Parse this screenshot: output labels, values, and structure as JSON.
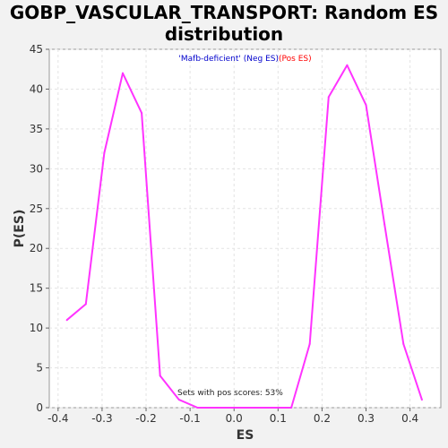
{
  "chart_data": {
    "type": "line",
    "title_line1": "GOBP_VASCULAR_TRANSPORT: Random ES",
    "title_line2": "distribution",
    "xlabel": "ES",
    "ylabel": "P(ES)",
    "xlim": [
      -0.42,
      0.47
    ],
    "ylim": [
      0,
      45
    ],
    "xticks": [
      -0.4,
      -0.3,
      -0.2,
      -0.1,
      0.0,
      0.1,
      0.2,
      0.3,
      0.4
    ],
    "xtick_labels": [
      "-0.4",
      "-0.3",
      "-0.2",
      "-0.1",
      "0.0",
      "0.1",
      "0.2",
      "0.3",
      "0.4"
    ],
    "yticks": [
      0,
      5,
      10,
      15,
      20,
      25,
      30,
      35,
      40,
      45
    ],
    "ytick_labels": [
      "0",
      "5",
      "10",
      "15",
      "20",
      "25",
      "30",
      "35",
      "40",
      "45"
    ],
    "grid": true,
    "legend": {
      "placement": "top-center",
      "neg_label": "'Mafb-deficient' (Neg ES)",
      "pos_label": "(Pos ES)",
      "neg_color": "#0000cc",
      "pos_color": "#ff0000"
    },
    "annotation": "Sets with pos scores: 53%",
    "series": [
      {
        "color": "#ff33ff",
        "x": [
          -0.38,
          -0.337,
          -0.295,
          -0.253,
          -0.21,
          -0.168,
          -0.125,
          -0.083,
          -0.04,
          0.002,
          0.045,
          0.087,
          0.13,
          0.172,
          0.215,
          0.257,
          0.3,
          0.342,
          0.385,
          0.427
        ],
        "y": [
          11,
          13,
          32,
          42,
          37,
          4,
          1,
          0,
          0,
          0,
          0,
          0,
          0,
          8,
          39,
          43,
          38,
          23,
          8,
          1
        ]
      }
    ]
  }
}
